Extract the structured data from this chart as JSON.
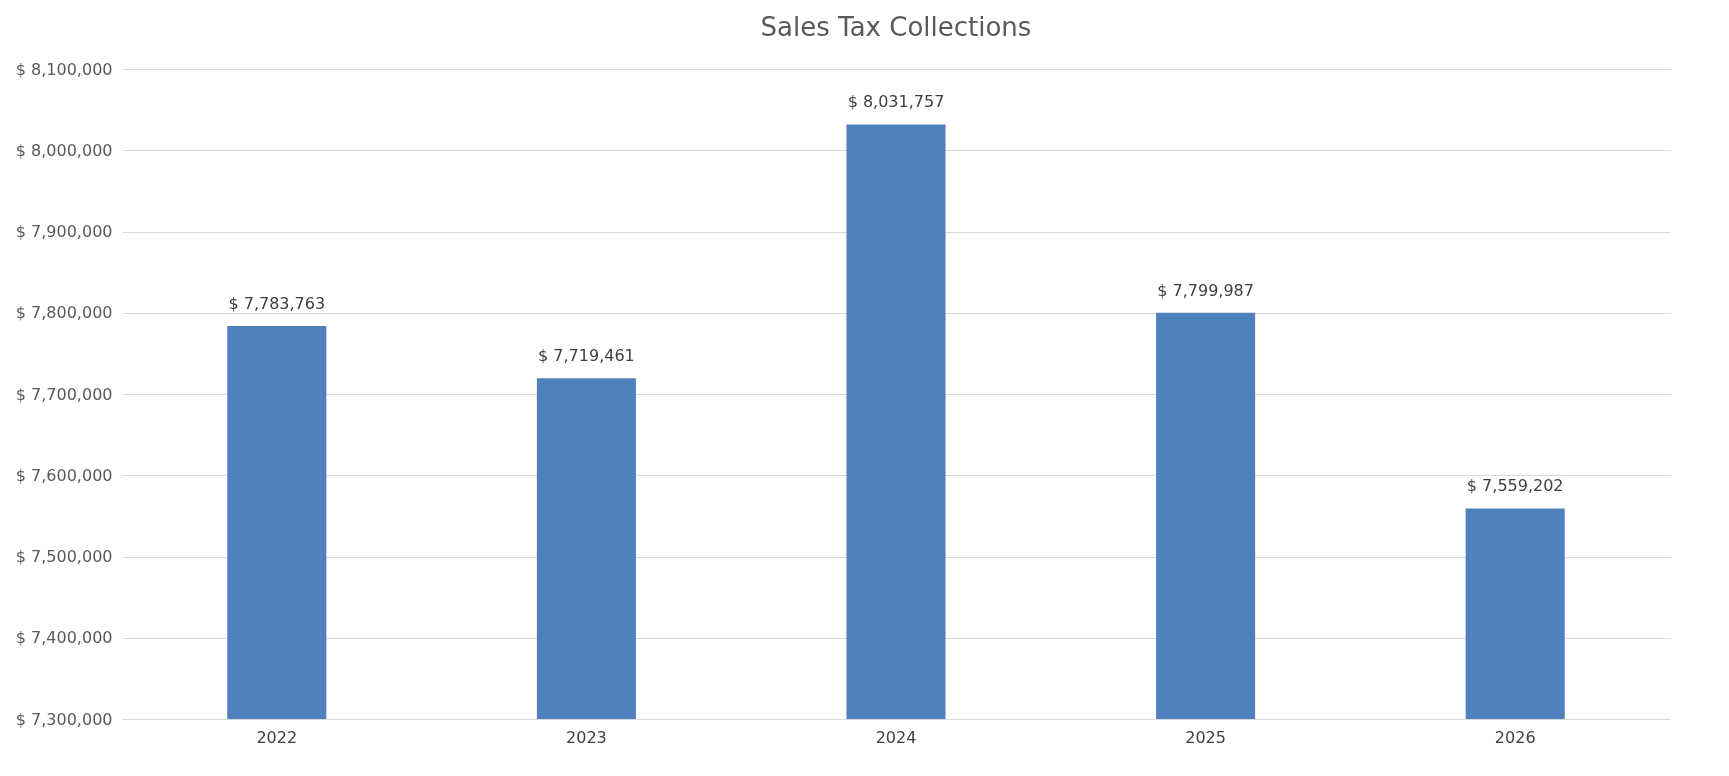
{
  "chart_data": {
    "type": "bar",
    "title": "Sales Tax Collections",
    "categories": [
      "2022",
      "2023",
      "2024",
      "2025",
      "2026"
    ],
    "values": [
      7783763,
      7719461,
      8031757,
      7799987,
      7559202
    ],
    "value_labels": [
      "$ 7,783,763",
      "$ 7,719,461",
      "$ 8,031,757",
      "$ 7,799,987",
      "$ 7,559,202"
    ],
    "color": "#4f81bd",
    "ylim": [
      7300000,
      8100000
    ],
    "yticks": [
      {
        "value": 7300000,
        "label": "$ 7,300,000"
      },
      {
        "value": 7400000,
        "label": "$ 7,400,000"
      },
      {
        "value": 7500000,
        "label": "$ 7,500,000"
      },
      {
        "value": 7600000,
        "label": "$ 7,600,000"
      },
      {
        "value": 7700000,
        "label": "$ 7,700,000"
      },
      {
        "value": 7800000,
        "label": "$ 7,800,000"
      },
      {
        "value": 7900000,
        "label": "$ 7,900,000"
      },
      {
        "value": 8000000,
        "label": "$ 8,000,000"
      },
      {
        "value": 8100000,
        "label": "$ 8,100,000"
      }
    ],
    "grid": "y"
  }
}
